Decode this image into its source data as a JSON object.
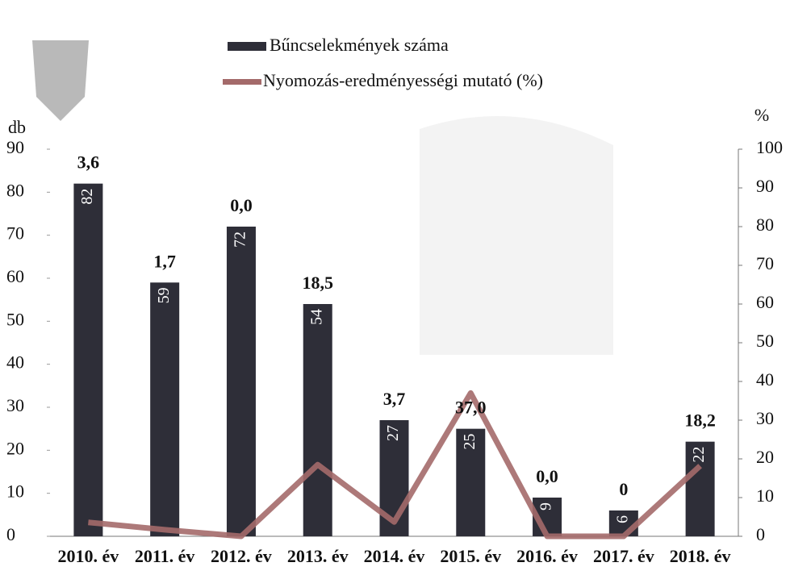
{
  "chart_data": {
    "type": "bar-line",
    "categories": [
      "2010. év",
      "2011. év",
      "2012. év",
      "2013. év",
      "2014. év",
      "2015. év",
      "2016. év",
      "2017. év",
      "2018. év"
    ],
    "y_label": "db",
    "y2_label": "%",
    "series": [
      {
        "name": "Bűncselekmények száma",
        "type": "bar",
        "color": "#2e2e38",
        "values": [
          82,
          59,
          72,
          54,
          27,
          25,
          9,
          6,
          22
        ]
      },
      {
        "name": "Nyomozás-eredményességi mutató (%)",
        "type": "line",
        "axis": "y2",
        "color": "#a46a6a",
        "values": [
          3.6,
          1.7,
          0.0,
          18.5,
          3.7,
          37.0,
          0.0,
          0,
          18.2
        ],
        "value_labels": [
          "3,6",
          "1,7",
          "0,0",
          "18,5",
          "3,7",
          "37,0",
          "0,0",
          "0",
          "18,2"
        ]
      }
    ],
    "ylim": [
      0,
      90
    ],
    "yticks": [
      0,
      10,
      20,
      30,
      40,
      50,
      60,
      70,
      80,
      90
    ],
    "y2lim": [
      0,
      100
    ],
    "y2ticks": [
      0,
      10,
      20,
      30,
      40,
      50,
      60,
      70,
      80,
      90,
      100
    ]
  }
}
